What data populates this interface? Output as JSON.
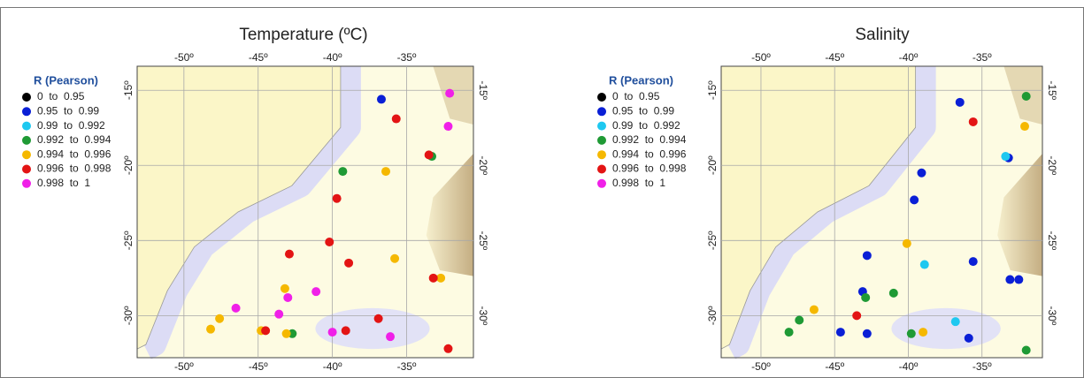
{
  "chart_data": [
    {
      "type": "scatter",
      "title": "Temperature (ºC)",
      "legend_title": "R (Pearson)",
      "grid": true,
      "xlim": [
        -53.15,
        -30.5
      ],
      "ylim": [
        -32.8,
        -13.4
      ],
      "xticks": [
        {
          "value": -50,
          "label": "-50º"
        },
        {
          "value": -45,
          "label": "-45º"
        },
        {
          "value": -40,
          "label": "-40º"
        },
        {
          "value": -35,
          "label": "-35º"
        }
      ],
      "yticks": [
        {
          "value": -15,
          "label": "-15º"
        },
        {
          "value": -20,
          "label": "-20º"
        },
        {
          "value": -25,
          "label": "-25º"
        },
        {
          "value": -30,
          "label": "-30º"
        }
      ],
      "series": [
        {
          "name": "0  to  0.95",
          "color": "#000000",
          "x": [],
          "values": []
        },
        {
          "name": "0.95  to  0.99",
          "color": "#0a1fd6",
          "x": [
            -36.7
          ],
          "values": [
            -15.6
          ]
        },
        {
          "name": "0.99  to  0.992",
          "color": "#1ec8f0",
          "x": [],
          "values": []
        },
        {
          "name": "0.992  to  0.994",
          "color": "#1f9a35",
          "x": [
            -33.3,
            -39.3,
            -42.7
          ],
          "values": [
            -19.4,
            -20.4,
            -31.2
          ]
        },
        {
          "name": "0.994  to  0.996",
          "color": "#f5b800",
          "x": [
            -36.4,
            -35.8,
            -32.7,
            -43.2,
            -47.6,
            -48.2,
            -44.8,
            -43.1
          ],
          "values": [
            -20.4,
            -26.2,
            -27.5,
            -28.2,
            -30.2,
            -30.9,
            -31.0,
            -31.2
          ]
        },
        {
          "name": "0.996  to  0.998",
          "color": "#e31414",
          "x": [
            -35.7,
            -33.5,
            -39.7,
            -40.2,
            -42.9,
            -38.9,
            -33.2,
            -36.9,
            -39.1,
            -44.5,
            -32.2
          ],
          "values": [
            -16.9,
            -19.3,
            -22.2,
            -25.1,
            -25.9,
            -26.5,
            -27.5,
            -30.2,
            -31.0,
            -31.0,
            -32.2
          ]
        },
        {
          "name": "0.998  to  1",
          "color": "#f020e8",
          "x": [
            -32.1,
            -32.2,
            -41.1,
            -43.0,
            -46.5,
            -43.6,
            -40.0,
            -36.1
          ],
          "values": [
            -15.2,
            -17.4,
            -28.4,
            -28.8,
            -29.5,
            -29.9,
            -31.1,
            -31.4
          ]
        }
      ]
    },
    {
      "type": "scatter",
      "title": "Salinity",
      "legend_title": "R (Pearson)",
      "grid": true,
      "xlim": [
        -52.7,
        -30.9
      ],
      "ylim": [
        -32.8,
        -13.4
      ],
      "xticks": [
        {
          "value": -50,
          "label": "-50º"
        },
        {
          "value": -45,
          "label": "-45º"
        },
        {
          "value": -40,
          "label": "-40º"
        },
        {
          "value": -35,
          "label": "-35º"
        }
      ],
      "yticks": [
        {
          "value": -15,
          "label": "-15º"
        },
        {
          "value": -20,
          "label": "-20º"
        },
        {
          "value": -25,
          "label": "-25º"
        },
        {
          "value": -30,
          "label": "-30º"
        }
      ],
      "series": [
        {
          "name": "0  to  0.95",
          "color": "#000000",
          "x": [],
          "values": []
        },
        {
          "name": "0.95  to  0.99",
          "color": "#0a1fd6",
          "x": [
            -36.5,
            -39.1,
            -33.2,
            -39.6,
            -42.8,
            -35.6,
            -33.1,
            -32.5,
            -43.1,
            -44.6,
            -42.8,
            -35.9
          ],
          "values": [
            -15.8,
            -20.5,
            -19.5,
            -22.3,
            -26.0,
            -26.4,
            -27.6,
            -27.6,
            -28.4,
            -31.1,
            -31.2,
            -31.5
          ]
        },
        {
          "name": "0.99  to  0.992",
          "color": "#1ec8f0",
          "x": [
            -33.4,
            -38.9,
            -36.8
          ],
          "values": [
            -19.4,
            -26.6,
            -30.4
          ]
        },
        {
          "name": "0.992  to  0.994",
          "color": "#1f9a35",
          "x": [
            -32.0,
            -42.9,
            -41.0,
            -47.4,
            -48.1,
            -39.8,
            -32.0
          ],
          "values": [
            -15.4,
            -28.8,
            -28.5,
            -30.3,
            -31.1,
            -31.2,
            -32.3
          ]
        },
        {
          "name": "0.994  to  0.996",
          "color": "#f5b800",
          "x": [
            -32.1,
            -40.1,
            -46.4,
            -39.0
          ],
          "values": [
            -17.4,
            -25.2,
            -29.6,
            -31.1
          ]
        },
        {
          "name": "0.996  to  0.998",
          "color": "#e31414",
          "x": [
            -35.6,
            -43.5
          ],
          "values": [
            -17.1,
            -30.0
          ]
        },
        {
          "name": "0.998  to  1",
          "color": "#f020e8",
          "x": [],
          "values": []
        }
      ]
    }
  ]
}
